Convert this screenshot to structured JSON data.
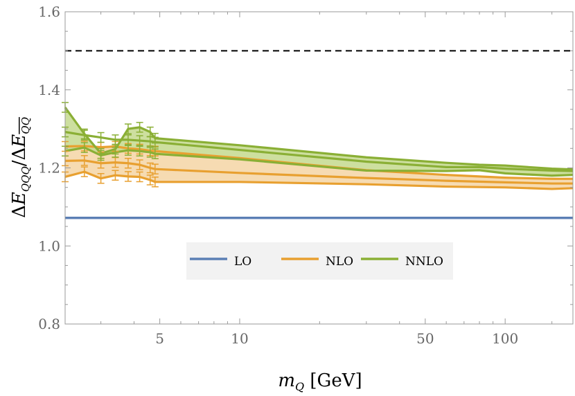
{
  "chart_data": {
    "type": "line",
    "title": "",
    "xlabel": "m_Q [GeV]",
    "ylabel": "ΔE_QQQ / ΔE_QQbar",
    "xscale": "log",
    "xlim": [
      2.2,
      180
    ],
    "ylim": [
      0.8,
      1.6
    ],
    "x_ticks": [
      5,
      10,
      50,
      100
    ],
    "x_tick_labels": [
      "5",
      "10",
      "50",
      "100"
    ],
    "y_ticks": [
      0.8,
      1.0,
      1.2,
      1.4,
      1.6
    ],
    "y_tick_labels": [
      "0.8",
      "1.0",
      "1.2",
      "1.4",
      "1.6"
    ],
    "reference_line": {
      "y": 1.5,
      "style": "dashed",
      "color": "#000000"
    },
    "legend": {
      "placement": "center",
      "entries": [
        "LO",
        "NLO",
        "NNLO"
      ]
    },
    "series": [
      {
        "name": "LO",
        "color": "#5b7fb5",
        "x": [
          2.2,
          180
        ],
        "lower": [
          1.072,
          1.072
        ],
        "center": [
          1.072,
          1.072
        ],
        "upper": [
          1.072,
          1.072
        ]
      },
      {
        "name": "NLO",
        "color": "#e8a030",
        "fill": "#f5d5a5",
        "x": [
          2.2,
          2.6,
          3.0,
          3.4,
          3.8,
          4.2,
          4.6,
          4.8,
          10,
          30,
          60,
          100,
          150,
          180
        ],
        "lower": [
          1.177,
          1.19,
          1.173,
          1.181,
          1.178,
          1.177,
          1.169,
          1.164,
          1.164,
          1.158,
          1.152,
          1.15,
          1.146,
          1.148
        ],
        "center": [
          1.218,
          1.219,
          1.212,
          1.214,
          1.212,
          1.208,
          1.2,
          1.197,
          1.187,
          1.174,
          1.167,
          1.163,
          1.16,
          1.16
        ],
        "upper": [
          1.255,
          1.256,
          1.253,
          1.255,
          1.25,
          1.248,
          1.244,
          1.243,
          1.225,
          1.194,
          1.182,
          1.175,
          1.172,
          1.172
        ]
      },
      {
        "name": "NNLO",
        "color": "#8aaf35",
        "fill": "#c4d98e",
        "x": [
          2.2,
          2.6,
          3.0,
          3.4,
          3.8,
          4.2,
          4.6,
          4.8,
          10,
          30,
          60,
          80,
          100,
          150,
          180
        ],
        "lower": [
          1.243,
          1.252,
          1.232,
          1.24,
          1.245,
          1.243,
          1.24,
          1.236,
          1.222,
          1.193,
          1.192,
          1.194,
          1.186,
          1.18,
          1.182
        ],
        "center": [
          1.292,
          1.284,
          1.278,
          1.272,
          1.272,
          1.27,
          1.268,
          1.266,
          1.246,
          1.216,
          1.202,
          1.202,
          1.198,
          1.193,
          1.192
        ],
        "upper": [
          1.355,
          1.287,
          1.237,
          1.248,
          1.3,
          1.304,
          1.292,
          1.276,
          1.258,
          1.227,
          1.213,
          1.208,
          1.206,
          1.198,
          1.196
        ]
      }
    ]
  }
}
